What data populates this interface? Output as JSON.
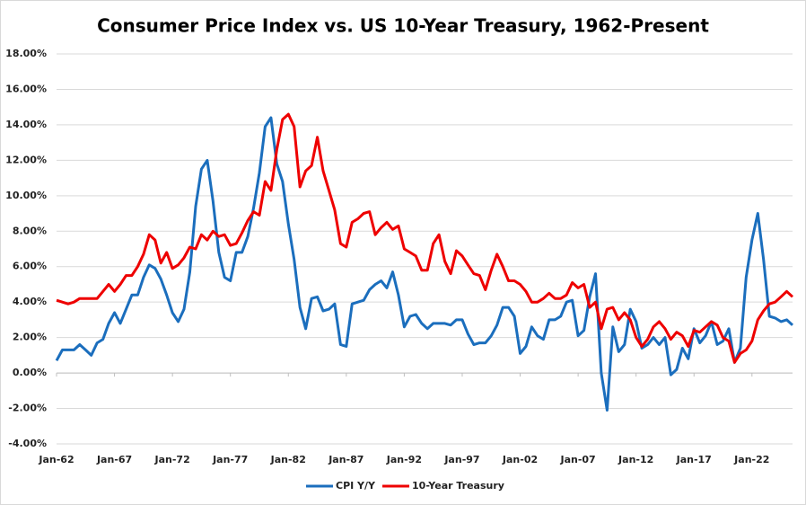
{
  "chart_data": {
    "type": "line",
    "title": "Consumer Price Index vs. US 10-Year Treasury, 1962-Present",
    "x": [
      1962,
      1962.5,
      1963,
      1963.5,
      1964,
      1964.5,
      1965,
      1965.5,
      1966,
      1966.5,
      1967,
      1967.5,
      1968,
      1968.5,
      1969,
      1969.5,
      1970,
      1970.5,
      1971,
      1971.5,
      1972,
      1972.5,
      1973,
      1973.5,
      1974,
      1974.5,
      1975,
      1975.5,
      1976,
      1976.5,
      1977,
      1977.5,
      1978,
      1978.5,
      1979,
      1979.5,
      1980,
      1980.5,
      1981,
      1981.5,
      1982,
      1982.5,
      1983,
      1983.5,
      1984,
      1984.5,
      1985,
      1985.5,
      1986,
      1986.5,
      1987,
      1987.5,
      1988,
      1988.5,
      1989,
      1989.5,
      1990,
      1990.5,
      1991,
      1991.5,
      1992,
      1992.5,
      1993,
      1993.5,
      1994,
      1994.5,
      1995,
      1995.5,
      1996,
      1996.5,
      1997,
      1997.5,
      1998,
      1998.5,
      1999,
      1999.5,
      2000,
      2000.5,
      2001,
      2001.5,
      2002,
      2002.5,
      2003,
      2003.5,
      2004,
      2004.5,
      2005,
      2005.5,
      2006,
      2006.5,
      2007,
      2007.5,
      2008,
      2008.5,
      2009,
      2009.5,
      2010,
      2010.5,
      2011,
      2011.5,
      2012,
      2012.5,
      2013,
      2013.5,
      2014,
      2014.5,
      2015,
      2015.5,
      2016,
      2016.5,
      2017,
      2017.5,
      2018,
      2018.5,
      2019,
      2019.5,
      2020,
      2020.5,
      2021,
      2021.5,
      2022,
      2022.5,
      2023,
      2023.5,
      2024,
      2024.5,
      2025,
      2025.5
    ],
    "series": [
      {
        "name": "CPI Y/Y",
        "color": "#1b6ebd",
        "values": [
          0.7,
          1.3,
          1.3,
          1.3,
          1.6,
          1.3,
          1.0,
          1.7,
          1.9,
          2.8,
          3.4,
          2.8,
          3.6,
          4.4,
          4.4,
          5.4,
          6.1,
          5.9,
          5.3,
          4.4,
          3.4,
          2.9,
          3.6,
          5.7,
          9.4,
          11.5,
          12.0,
          9.7,
          6.8,
          5.4,
          5.2,
          6.8,
          6.8,
          7.7,
          9.3,
          11.3,
          13.9,
          14.4,
          11.8,
          10.8,
          8.4,
          6.4,
          3.7,
          2.5,
          4.2,
          4.3,
          3.5,
          3.6,
          3.9,
          1.6,
          1.5,
          3.9,
          4.0,
          4.1,
          4.7,
          5.0,
          5.2,
          4.8,
          5.7,
          4.4,
          2.6,
          3.2,
          3.3,
          2.8,
          2.5,
          2.8,
          2.8,
          2.8,
          2.7,
          3.0,
          3.0,
          2.2,
          1.6,
          1.7,
          1.7,
          2.1,
          2.7,
          3.7,
          3.7,
          3.2,
          1.1,
          1.5,
          2.6,
          2.1,
          1.9,
          3.0,
          3.0,
          3.2,
          4.0,
          4.1,
          2.1,
          2.4,
          4.3,
          5.6,
          0.0,
          -2.1,
          2.6,
          1.2,
          1.6,
          3.6,
          2.9,
          1.4,
          1.6,
          2.0,
          1.6,
          2.0,
          -0.1,
          0.2,
          1.4,
          0.8,
          2.5,
          1.7,
          2.1,
          2.9,
          1.6,
          1.8,
          2.5,
          0.6,
          1.4,
          5.4,
          7.5,
          9.0,
          6.4,
          3.2,
          3.1,
          2.9,
          3.0,
          2.7
        ]
      },
      {
        "name": "10-Year Treasury",
        "color": "#ee0000",
        "values": [
          4.1,
          4.0,
          3.9,
          4.0,
          4.2,
          4.2,
          4.2,
          4.2,
          4.6,
          5.0,
          4.6,
          5.0,
          5.5,
          5.5,
          6.0,
          6.7,
          7.8,
          7.5,
          6.2,
          6.8,
          5.9,
          6.1,
          6.5,
          7.1,
          7.0,
          7.8,
          7.5,
          8.0,
          7.7,
          7.8,
          7.2,
          7.3,
          7.9,
          8.6,
          9.1,
          8.9,
          10.8,
          10.3,
          12.6,
          14.3,
          14.6,
          13.9,
          10.5,
          11.4,
          11.7,
          13.3,
          11.4,
          10.3,
          9.2,
          7.3,
          7.1,
          8.5,
          8.7,
          9.0,
          9.1,
          7.8,
          8.2,
          8.5,
          8.1,
          8.3,
          7.0,
          6.8,
          6.6,
          5.8,
          5.8,
          7.3,
          7.8,
          6.3,
          5.6,
          6.9,
          6.6,
          6.1,
          5.6,
          5.5,
          4.7,
          5.8,
          6.7,
          6.0,
          5.2,
          5.2,
          5.0,
          4.6,
          4.0,
          4.0,
          4.2,
          4.5,
          4.2,
          4.2,
          4.4,
          5.1,
          4.8,
          5.0,
          3.7,
          4.0,
          2.5,
          3.6,
          3.7,
          3.0,
          3.4,
          3.0,
          2.0,
          1.5,
          1.9,
          2.6,
          2.9,
          2.5,
          1.9,
          2.3,
          2.1,
          1.5,
          2.4,
          2.3,
          2.6,
          2.9,
          2.7,
          2.0,
          1.8,
          0.6,
          1.1,
          1.3,
          1.8,
          3.0,
          3.5,
          3.9,
          4.0,
          4.3,
          4.6,
          4.3
        ]
      }
    ],
    "xlim": [
      1962,
      2025.5
    ],
    "xticks": [
      {
        "value": 1962,
        "label": "Jan-62"
      },
      {
        "value": 1967,
        "label": "Jan-67"
      },
      {
        "value": 1972,
        "label": "Jan-72"
      },
      {
        "value": 1977,
        "label": "Jan-77"
      },
      {
        "value": 1982,
        "label": "Jan-82"
      },
      {
        "value": 1987,
        "label": "Jan-87"
      },
      {
        "value": 1992,
        "label": "Jan-92"
      },
      {
        "value": 1997,
        "label": "Jan-97"
      },
      {
        "value": 2002,
        "label": "Jan-02"
      },
      {
        "value": 2007,
        "label": "Jan-07"
      },
      {
        "value": 2012,
        "label": "Jan-12"
      },
      {
        "value": 2017,
        "label": "Jan-17"
      },
      {
        "value": 2022,
        "label": "Jan-22"
      }
    ],
    "ylim": [
      -4,
      18
    ],
    "yticks": [
      {
        "value": -4,
        "label": "-4.00%"
      },
      {
        "value": -2,
        "label": "-2.00%"
      },
      {
        "value": 0,
        "label": "0.00%"
      },
      {
        "value": 2,
        "label": "2.00%"
      },
      {
        "value": 4,
        "label": "4.00%"
      },
      {
        "value": 6,
        "label": "6.00%"
      },
      {
        "value": 8,
        "label": "8.00%"
      },
      {
        "value": 10,
        "label": "10.00%"
      },
      {
        "value": 12,
        "label": "12.00%"
      },
      {
        "value": 14,
        "label": "14.00%"
      },
      {
        "value": 16,
        "label": "16.00%"
      },
      {
        "value": 18,
        "label": "18.00%"
      }
    ],
    "grid": true,
    "legend": "bottom"
  }
}
